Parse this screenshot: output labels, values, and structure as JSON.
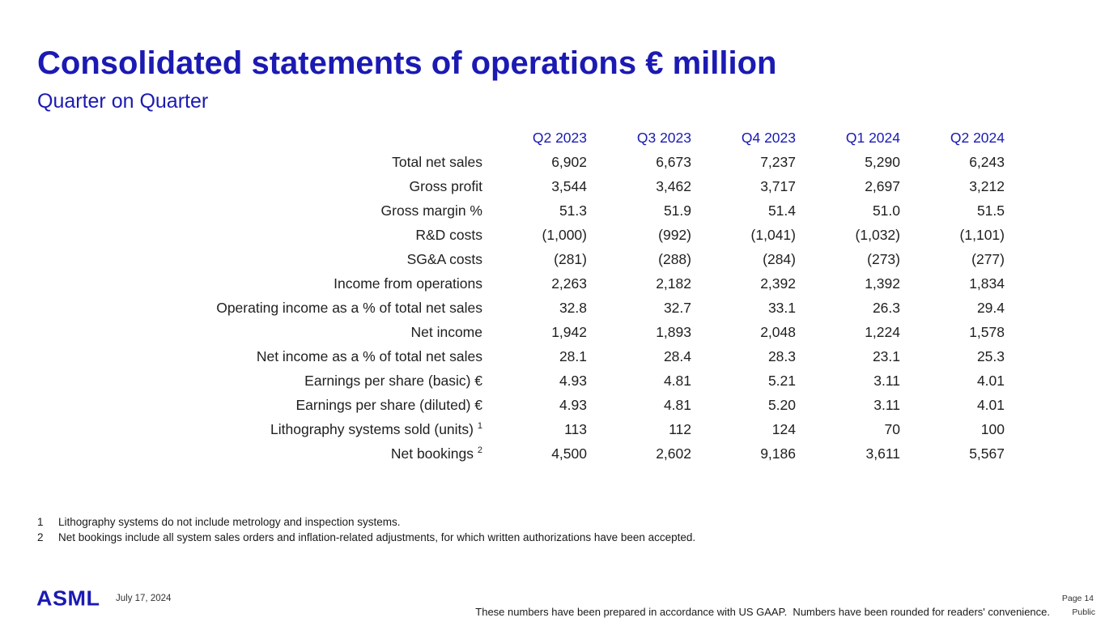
{
  "slide": {
    "title": "Consolidated statements of operations € million",
    "subtitle": "Quarter on Quarter"
  },
  "table": {
    "columns": [
      "Q2 2023",
      "Q3 2023",
      "Q4 2023",
      "Q1 2024",
      "Q2 2024"
    ],
    "rows": [
      {
        "label": "Total net sales",
        "values": [
          "6,902",
          "6,673",
          "7,237",
          "5,290",
          "6,243"
        ]
      },
      {
        "label": "Gross profit",
        "values": [
          "3,544",
          "3,462",
          "3,717",
          "2,697",
          "3,212"
        ]
      },
      {
        "label": "Gross margin %",
        "values": [
          "51.3",
          "51.9",
          "51.4",
          "51.0",
          "51.5"
        ]
      },
      {
        "label": "R&D costs",
        "values": [
          "(1,000)",
          "(992)",
          "(1,041)",
          "(1,032)",
          "(1,101)"
        ]
      },
      {
        "label": "SG&A costs",
        "values": [
          "(281)",
          "(288)",
          "(284)",
          "(273)",
          "(277)"
        ]
      },
      {
        "label": "Income from operations",
        "values": [
          "2,263",
          "2,182",
          "2,392",
          "1,392",
          "1,834"
        ]
      },
      {
        "label": "Operating income as a % of total net sales",
        "values": [
          "32.8",
          "32.7",
          "33.1",
          "26.3",
          "29.4"
        ]
      },
      {
        "label": "Net income",
        "values": [
          "1,942",
          "1,893",
          "2,048",
          "1,224",
          "1,578"
        ]
      },
      {
        "label": "Net income as a % of total net sales",
        "values": [
          "28.1",
          "28.4",
          "28.3",
          "23.1",
          "25.3"
        ]
      },
      {
        "label": "Earnings per share (basic) €",
        "values": [
          "4.93",
          "4.81",
          "5.21",
          "3.11",
          "4.01"
        ]
      },
      {
        "label": "Earnings per share (diluted) €",
        "values": [
          "4.93",
          "4.81",
          "5.20",
          "3.11",
          "4.01"
        ]
      },
      {
        "label": "Lithography systems sold (units)",
        "sup": "1",
        "values": [
          "113",
          "112",
          "124",
          "70",
          "100"
        ]
      },
      {
        "label": "Net bookings",
        "sup": "2",
        "values": [
          "4,500",
          "2,602",
          "9,186",
          "3,611",
          "5,567"
        ]
      }
    ]
  },
  "footnotes": [
    {
      "num": "1",
      "text": "Lithography systems do not include metrology and inspection systems."
    },
    {
      "num": "2",
      "text": "Net bookings include all system sales orders and inflation-related adjustments, for which written authorizations have been accepted."
    }
  ],
  "footer": {
    "logo": "ASML",
    "date": "July 17, 2024",
    "disclaimer": "These numbers have been prepared in accordance with US GAAP.  Numbers have been rounded for readers' convenience.",
    "page": "Page 14",
    "classification": "Public"
  },
  "colors": {
    "brand_blue": "#1b1ab3",
    "text": "#1f1f1f"
  }
}
